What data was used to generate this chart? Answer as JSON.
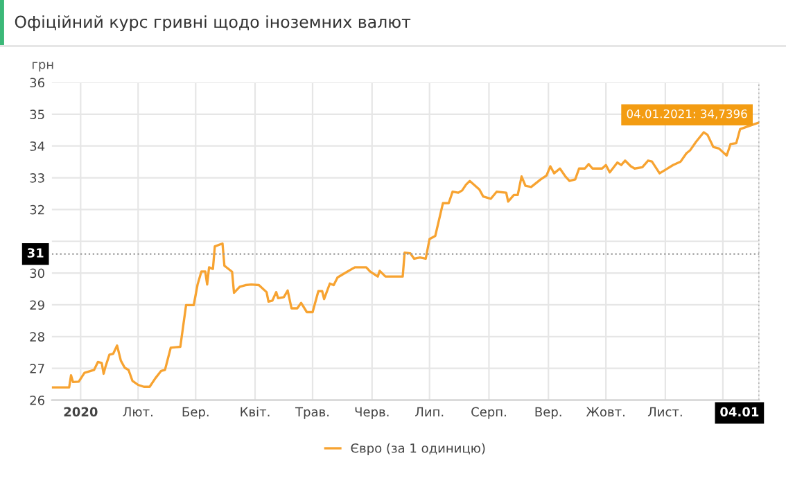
{
  "chart_data": {
    "type": "line",
    "title": "Офіційний курс гривні щодо іноземних валют",
    "ylabel": "грн",
    "x": [
      "2020-01-01",
      "2020-01-10",
      "2020-01-11",
      "2020-01-12",
      "2020-01-15",
      "2020-01-18",
      "2020-01-23",
      "2020-01-25",
      "2020-01-27",
      "2020-01-28",
      "2020-01-29",
      "2020-01-31",
      "2020-02-02",
      "2020-02-04",
      "2020-02-06",
      "2020-02-08",
      "2020-02-10",
      "2020-02-12",
      "2020-02-15",
      "2020-02-18",
      "2020-02-21",
      "2020-02-24",
      "2020-02-27",
      "2020-02-29",
      "2020-03-03",
      "2020-03-08",
      "2020-03-11",
      "2020-03-15",
      "2020-03-17",
      "2020-03-19",
      "2020-03-21",
      "2020-03-22",
      "2020-03-23",
      "2020-03-25",
      "2020-03-26",
      "2020-03-30",
      "2020-03-31",
      "2020-04-04",
      "2020-04-05",
      "2020-04-08",
      "2020-04-11",
      "2020-04-14",
      "2020-04-18",
      "2020-04-22",
      "2020-04-23",
      "2020-04-25",
      "2020-04-27",
      "2020-04-28",
      "2020-05-01",
      "2020-05-03",
      "2020-05-05",
      "2020-05-08",
      "2020-05-10",
      "2020-05-13",
      "2020-05-16",
      "2020-05-19",
      "2020-05-21",
      "2020-05-22",
      "2020-05-25",
      "2020-05-27",
      "2020-05-29",
      "2020-06-01",
      "2020-06-07",
      "2020-06-13",
      "2020-06-15",
      "2020-06-19",
      "2020-06-20",
      "2020-06-23",
      "2020-07-01",
      "2020-07-02",
      "2020-07-03",
      "2020-07-06",
      "2020-07-08",
      "2020-07-11",
      "2020-07-14",
      "2020-07-16",
      "2020-07-19",
      "2020-07-23",
      "2020-07-26",
      "2020-07-28",
      "2020-07-31",
      "2020-08-02",
      "2020-08-04",
      "2020-08-06",
      "2020-08-11",
      "2020-08-13",
      "2020-08-17",
      "2020-08-20",
      "2020-08-25",
      "2020-08-26",
      "2020-08-29",
      "2020-08-31",
      "2020-09-02",
      "2020-09-04",
      "2020-09-07",
      "2020-09-12",
      "2020-09-15",
      "2020-09-17",
      "2020-09-19",
      "2020-09-22",
      "2020-09-25",
      "2020-09-27",
      "2020-09-30",
      "2020-10-02",
      "2020-10-05",
      "2020-10-07",
      "2020-10-09",
      "2020-10-14",
      "2020-10-16",
      "2020-10-18",
      "2020-10-22",
      "2020-10-24",
      "2020-10-26",
      "2020-10-29",
      "2020-10-31",
      "2020-11-04",
      "2020-11-07",
      "2020-11-09",
      "2020-11-13",
      "2020-11-16",
      "2020-11-20",
      "2020-11-24",
      "2020-11-27",
      "2020-11-29",
      "2020-12-02",
      "2020-12-06",
      "2020-12-08",
      "2020-12-11",
      "2020-12-14",
      "2020-12-18",
      "2020-12-20",
      "2020-12-23",
      "2020-12-25",
      "2021-01-04"
    ],
    "series": [
      {
        "name": "Євро (за 1 одиницю)",
        "color": "#f7a331",
        "values": [
          26.4,
          26.4,
          26.78,
          26.57,
          26.58,
          26.86,
          26.95,
          27.2,
          27.17,
          26.83,
          27.06,
          27.43,
          27.46,
          27.72,
          27.24,
          27.02,
          26.95,
          26.61,
          26.48,
          26.42,
          26.42,
          26.69,
          26.92,
          26.95,
          27.65,
          27.68,
          28.99,
          28.99,
          29.64,
          30.05,
          30.05,
          29.64,
          30.18,
          30.13,
          30.84,
          30.93,
          30.23,
          30.04,
          29.38,
          29.57,
          29.62,
          29.64,
          29.62,
          29.4,
          29.1,
          29.13,
          29.4,
          29.21,
          29.24,
          29.45,
          28.89,
          28.89,
          29.06,
          28.77,
          28.77,
          29.43,
          29.43,
          29.18,
          29.67,
          29.62,
          29.86,
          29.97,
          30.18,
          30.18,
          30.05,
          29.89,
          30.07,
          29.89,
          29.89,
          29.89,
          30.64,
          30.62,
          30.45,
          30.49,
          30.45,
          31.07,
          31.17,
          32.2,
          32.2,
          32.56,
          32.53,
          32.6,
          32.78,
          32.9,
          32.63,
          32.41,
          32.34,
          32.56,
          32.53,
          32.25,
          32.46,
          32.46,
          33.04,
          32.75,
          32.71,
          32.95,
          33.07,
          33.36,
          33.14,
          33.29,
          33.03,
          32.9,
          32.95,
          33.29,
          33.29,
          33.43,
          33.29,
          33.29,
          33.4,
          33.17,
          33.48,
          33.4,
          33.54,
          33.36,
          33.29,
          33.33,
          33.54,
          33.51,
          33.14,
          33.25,
          33.4,
          33.51,
          33.77,
          33.87,
          34.13,
          34.43,
          34.35,
          33.97,
          33.92,
          33.7,
          34.06,
          34.09,
          34.53,
          34.7396
        ]
      }
    ],
    "xlim": [
      "2020-01-01",
      "2021-01-04"
    ],
    "xticks": [
      {
        "value": "2020-01-16",
        "label": "2020"
      },
      {
        "value": "2020-02-15",
        "label": "Лют."
      },
      {
        "value": "2020-03-16",
        "label": "Бер."
      },
      {
        "value": "2020-04-16",
        "label": "Квіт."
      },
      {
        "value": "2020-05-16",
        "label": "Трав."
      },
      {
        "value": "2020-06-16",
        "label": "Черв."
      },
      {
        "value": "2020-07-16",
        "label": "Лип."
      },
      {
        "value": "2020-08-16",
        "label": "Серп."
      },
      {
        "value": "2020-09-16",
        "label": "Вер."
      },
      {
        "value": "2020-10-16",
        "label": "Жовт."
      },
      {
        "value": "2020-11-16",
        "label": "Лист."
      },
      {
        "value": "2020-12-16",
        "label": null
      },
      {
        "value": "2021-01-04",
        "label": "04.01"
      }
    ],
    "ylim": [
      26,
      36
    ],
    "yticks": [
      26,
      27,
      28,
      29,
      30,
      {
        "value": 31,
        "label": null
      },
      32,
      33,
      34,
      35,
      36
    ],
    "grid": true,
    "legend": "bottom",
    "marker": "none",
    "line_style": "solid",
    "ref_lines": [
      {
        "axis": "y",
        "value": 30.6,
        "label": "31",
        "color": "#999999",
        "line_style": "dotted"
      },
      {
        "axis": "x",
        "value": "2021-01-04",
        "color": "#999999",
        "line_style": "dotted"
      }
    ],
    "annotations": [
      {
        "text": "04.01.2021: 34,7396",
        "x": "2021-01-04",
        "y": 34.7396
      }
    ]
  }
}
